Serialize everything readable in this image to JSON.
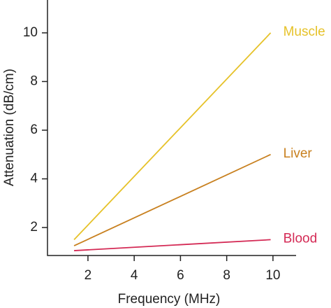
{
  "chart_data": {
    "type": "line",
    "xlabel": "Frequency (MHz)",
    "ylabel": "Attenuation (dB/cm)",
    "xlim": [
      0.25,
      11
    ],
    "ylim": [
      0.85,
      11.35
    ],
    "xticks": [
      2,
      4,
      6,
      8,
      10
    ],
    "yticks": [
      2,
      4,
      6,
      8,
      10
    ],
    "series": [
      {
        "name": "Muscle",
        "color": "#e6c229",
        "x": [
          1.4,
          9.9
        ],
        "values": [
          1.5,
          10
        ]
      },
      {
        "name": "Liver",
        "color": "#c8801f",
        "x": [
          1.4,
          9.9
        ],
        "values": [
          1.25,
          5
        ]
      },
      {
        "name": "Blood",
        "color": "#d42a55",
        "x": [
          1.4,
          9.9
        ],
        "values": [
          1.05,
          1.5
        ]
      }
    ]
  }
}
